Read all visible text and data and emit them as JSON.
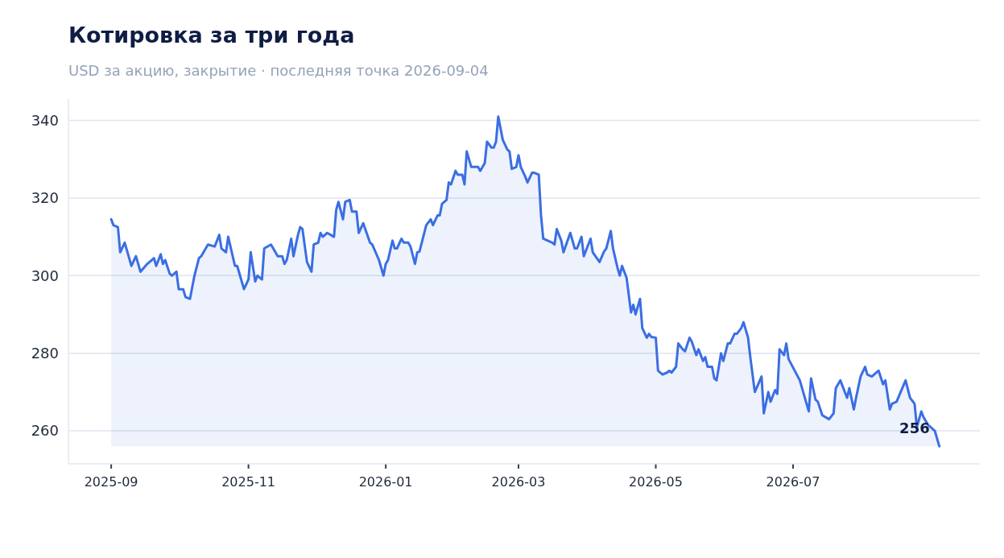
{
  "chart_data": {
    "type": "area",
    "title": "Котировка за три года",
    "subtitle": "USD за акцию, закрытие · последняя точка 2026-09-04",
    "xlim": [
      "2025-08-13",
      "2026-09-22"
    ],
    "xticks": [
      "2025-09",
      "2025-11",
      "2026-01",
      "2026-03",
      "2026-05",
      "2026-07"
    ],
    "ylim": [
      251.5,
      345.5
    ],
    "yticks": [
      260,
      280,
      300,
      320,
      340
    ],
    "grid": "y",
    "annotations": [
      {
        "text": "256",
        "x": "2026-09-04",
        "y": 256
      }
    ],
    "series": [
      {
        "color": "#3b6ee3",
        "x": [
          "2025-09-01",
          "2025-09-02",
          "2025-09-04",
          "2025-09-05",
          "2025-09-07",
          "2025-09-10",
          "2025-09-12",
          "2025-09-14",
          "2025-09-17",
          "2025-09-20",
          "2025-09-21",
          "2025-09-23",
          "2025-09-24",
          "2025-09-25",
          "2025-09-27",
          "2025-09-28",
          "2025-09-30",
          "2025-10-01",
          "2025-10-03",
          "2025-10-04",
          "2025-10-06",
          "2025-10-08",
          "2025-10-10",
          "2025-10-11",
          "2025-10-14",
          "2025-10-17",
          "2025-10-19",
          "2025-10-20",
          "2025-10-22",
          "2025-10-23",
          "2025-10-26",
          "2025-10-27",
          "2025-10-29",
          "2025-10-30",
          "2025-11-01",
          "2025-11-02",
          "2025-11-04",
          "2025-11-05",
          "2025-11-07",
          "2025-11-08",
          "2025-11-11",
          "2025-11-12",
          "2025-11-14",
          "2025-11-16",
          "2025-11-17",
          "2025-11-18",
          "2025-11-20",
          "2025-11-21",
          "2025-11-23",
          "2025-11-24",
          "2025-11-25",
          "2025-11-27",
          "2025-11-29",
          "2025-11-30",
          "2025-12-02",
          "2025-12-03",
          "2025-12-04",
          "2025-12-06",
          "2025-12-09",
          "2025-12-10",
          "2025-12-11",
          "2025-12-13",
          "2025-12-14",
          "2025-12-16",
          "2025-12-17",
          "2025-12-19",
          "2025-12-20",
          "2025-12-22",
          "2025-12-25",
          "2025-12-26",
          "2025-12-29",
          "2025-12-31",
          "2026-01-01",
          "2026-01-02",
          "2026-01-04",
          "2026-01-05",
          "2026-01-06",
          "2026-01-08",
          "2026-01-09",
          "2026-01-11",
          "2026-01-12",
          "2026-01-14",
          "2026-01-15",
          "2026-01-16",
          "2026-01-19",
          "2026-01-21",
          "2026-01-22",
          "2026-01-24",
          "2026-01-25",
          "2026-01-26",
          "2026-01-28",
          "2026-01-29",
          "2026-01-30",
          "2026-02-01",
          "2026-02-02",
          "2026-02-04",
          "2026-02-05",
          "2026-02-06",
          "2026-02-08",
          "2026-02-11",
          "2026-02-12",
          "2026-02-14",
          "2026-02-15",
          "2026-02-17",
          "2026-02-18",
          "2026-02-19",
          "2026-02-20",
          "2026-02-22",
          "2026-02-24",
          "2026-02-25",
          "2026-02-26",
          "2026-02-28",
          "2026-03-01",
          "2026-03-02",
          "2026-03-04",
          "2026-03-05",
          "2026-03-07",
          "2026-03-08",
          "2026-03-10",
          "2026-03-11",
          "2026-03-12",
          "2026-03-16",
          "2026-03-17",
          "2026-03-18",
          "2026-03-20",
          "2026-03-21",
          "2026-03-24",
          "2026-03-26",
          "2026-03-27",
          "2026-03-29",
          "2026-03-30",
          "2026-04-02",
          "2026-04-03",
          "2026-04-06",
          "2026-04-08",
          "2026-04-09",
          "2026-04-11",
          "2026-04-12",
          "2026-04-14",
          "2026-04-15",
          "2026-04-16",
          "2026-04-18",
          "2026-04-20",
          "2026-04-21",
          "2026-04-22",
          "2026-04-24",
          "2026-04-25",
          "2026-04-27",
          "2026-04-28",
          "2026-04-29",
          "2026-05-01",
          "2026-05-02",
          "2026-05-04",
          "2026-05-06",
          "2026-05-07",
          "2026-05-08",
          "2026-05-10",
          "2026-05-11",
          "2026-05-13",
          "2026-05-14",
          "2026-05-16",
          "2026-05-17",
          "2026-05-19",
          "2026-05-20",
          "2026-05-22",
          "2026-05-23",
          "2026-05-24",
          "2026-05-26",
          "2026-05-27",
          "2026-05-28",
          "2026-05-30",
          "2026-05-31",
          "2026-06-02",
          "2026-06-03",
          "2026-06-05",
          "2026-06-06",
          "2026-06-08",
          "2026-06-09",
          "2026-06-11",
          "2026-06-12",
          "2026-06-14",
          "2026-06-17",
          "2026-06-18",
          "2026-06-20",
          "2026-06-21",
          "2026-06-23",
          "2026-06-24",
          "2026-06-25",
          "2026-06-27",
          "2026-06-28",
          "2026-06-29",
          "2026-07-04",
          "2026-07-08",
          "2026-07-09",
          "2026-07-11",
          "2026-07-12",
          "2026-07-14",
          "2026-07-17",
          "2026-07-19",
          "2026-07-20",
          "2026-07-22",
          "2026-07-23",
          "2026-07-25",
          "2026-07-26",
          "2026-07-28",
          "2026-07-29",
          "2026-07-31",
          "2026-08-02",
          "2026-08-03",
          "2026-08-05",
          "2026-08-06",
          "2026-08-08",
          "2026-08-10",
          "2026-08-11",
          "2026-08-13",
          "2026-08-14",
          "2026-08-16",
          "2026-08-20",
          "2026-08-22",
          "2026-08-24",
          "2026-08-25",
          "2026-08-27",
          "2026-08-28",
          "2026-08-30",
          "2026-08-31",
          "2026-09-02",
          "2026-09-04"
        ],
        "values": [
          314.5,
          313,
          312.5,
          306,
          308.5,
          302.5,
          305,
          301,
          303,
          304.5,
          302.5,
          305.5,
          303,
          304,
          300.5,
          300,
          301,
          296.5,
          296.5,
          294.5,
          294,
          300,
          304.5,
          305,
          308,
          307.5,
          310.5,
          307,
          306,
          310,
          302.5,
          302.5,
          298.5,
          296.5,
          299,
          306,
          298.5,
          300,
          299,
          307,
          308,
          307,
          305,
          305,
          303,
          304,
          309.5,
          305,
          310.5,
          312.5,
          312,
          303.5,
          301,
          308,
          308.5,
          311,
          310,
          311,
          310,
          317,
          319,
          314.5,
          319,
          319.5,
          316.5,
          316.5,
          311,
          313.5,
          308.5,
          308,
          304,
          300,
          303,
          304,
          309,
          307,
          307,
          309.5,
          308.5,
          308.5,
          307.5,
          303,
          306,
          306.2,
          313,
          314.5,
          313,
          315.5,
          315.5,
          318.5,
          319.5,
          324,
          323.5,
          327,
          326,
          326,
          323.5,
          332,
          328,
          328,
          327,
          329,
          334.5,
          333,
          333,
          334.5,
          341,
          335,
          332.5,
          332,
          327.5,
          328,
          331,
          328,
          325.5,
          324,
          326.5,
          326.5,
          326,
          315.5,
          309.5,
          308.5,
          308,
          312,
          309,
          306,
          311,
          307,
          307,
          310,
          305,
          309.5,
          306,
          303.5,
          306.2,
          307,
          311.5,
          307,
          302,
          300,
          302.5,
          299.5,
          290.5,
          292.5,
          290,
          294,
          286.5,
          284,
          285,
          284.2,
          284,
          275.5,
          274.5,
          275,
          275.5,
          275,
          276.5,
          282.5,
          281,
          280.5,
          284,
          283,
          279.5,
          281,
          278,
          279,
          276.5,
          276.5,
          273.5,
          273,
          280,
          278,
          282.5,
          282.5,
          285,
          285,
          286.5,
          288,
          284,
          279,
          270,
          274,
          264.5,
          270,
          267.5,
          270.5,
          269.5,
          281,
          279.5,
          282.5,
          278.5,
          273,
          265,
          273.5,
          268,
          267.5,
          264,
          263,
          264.5,
          271,
          273,
          271.5,
          268.5,
          271,
          265.5,
          268.5,
          274,
          276.5,
          274.5,
          274,
          274.5,
          275.5,
          272,
          273,
          265.5,
          267,
          267.5,
          273,
          268.5,
          267,
          261,
          265,
          263.5,
          261.5,
          261,
          260,
          256
        ]
      }
    ]
  }
}
